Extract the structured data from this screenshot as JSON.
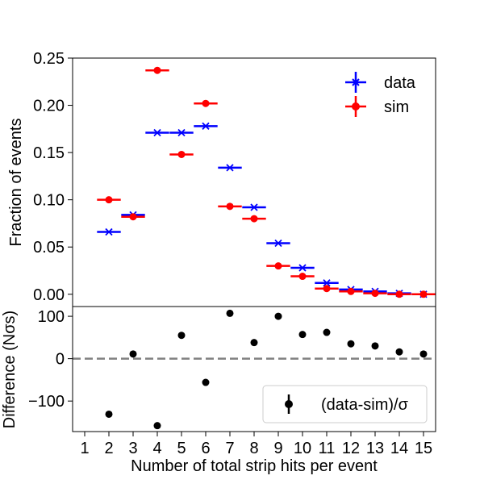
{
  "colors": {
    "data": "#0000ff",
    "sim": "#ff0000",
    "diff": "#000000",
    "zero_line": "#808080"
  },
  "chart_data": [
    {
      "type": "scatter",
      "ylabel": "Fraction of events",
      "ylim": [
        -0.013,
        0.25
      ],
      "yticks": [
        0.0,
        0.05,
        0.1,
        0.15,
        0.2,
        0.25
      ],
      "ytick_labels": [
        "0.00",
        "0.05",
        "0.10",
        "0.15",
        "0.20",
        "0.25"
      ],
      "legend": {
        "placement": "top-right",
        "entries": [
          "data",
          "sim"
        ]
      },
      "series": [
        {
          "name": "data",
          "marker": "x",
          "x": [
            2,
            3,
            4,
            5,
            6,
            7,
            8,
            9,
            10,
            11,
            12,
            13,
            14,
            15
          ],
          "y": [
            0.066,
            0.084,
            0.171,
            0.171,
            0.178,
            0.134,
            0.092,
            0.054,
            0.028,
            0.012,
            0.005,
            0.003,
            0.001,
            0.0
          ]
        },
        {
          "name": "sim",
          "marker": "circle",
          "x": [
            2,
            3,
            4,
            5,
            6,
            7,
            8,
            9,
            10,
            11,
            12,
            13,
            14,
            15
          ],
          "y": [
            0.1,
            0.082,
            0.237,
            0.148,
            0.202,
            0.093,
            0.08,
            0.03,
            0.019,
            0.006,
            0.003,
            0.001,
            0.0,
            0.0
          ]
        }
      ]
    },
    {
      "type": "scatter",
      "xlabel": "Number of total strip hits per event",
      "ylabel": "Difference (Nσs)",
      "xlim": [
        0.5,
        15.5
      ],
      "ylim": [
        -172,
        123
      ],
      "xticks": [
        1,
        2,
        3,
        4,
        5,
        6,
        7,
        8,
        9,
        10,
        11,
        12,
        13,
        14,
        15
      ],
      "xtick_labels": [
        "1",
        "2",
        "3",
        "4",
        "5",
        "6",
        "7",
        "8",
        "9",
        "10",
        "11",
        "12",
        "13",
        "14",
        "15"
      ],
      "yticks": [
        -100,
        0,
        100
      ],
      "ytick_labels": [
        "−100",
        "0",
        "100"
      ],
      "reference_line": 0,
      "legend": {
        "placement": "bottom-right",
        "entries": [
          "(data-sim)/σ"
        ]
      },
      "series": [
        {
          "name": "(data-sim)/σ",
          "marker": "circle",
          "x": [
            2,
            3,
            4,
            5,
            6,
            7,
            8,
            9,
            10,
            11,
            12,
            13,
            14,
            15
          ],
          "y": [
            -131,
            11,
            -158,
            55,
            -56,
            107,
            38,
            100,
            57,
            62,
            35,
            30,
            16,
            11
          ]
        }
      ]
    }
  ]
}
